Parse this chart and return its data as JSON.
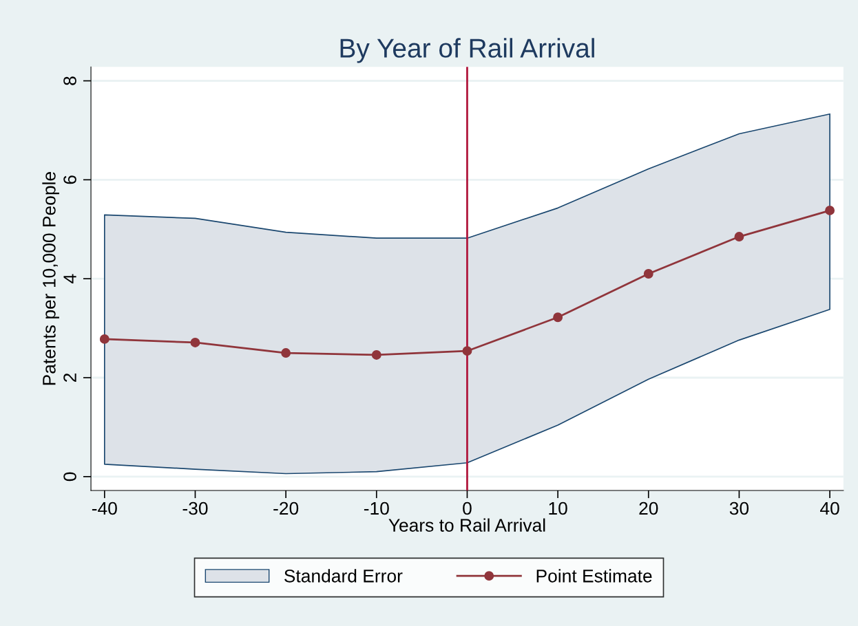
{
  "chart_data": {
    "type": "line",
    "title": "By Year of Rail Arrival",
    "xlabel": "Years to Rail Arrival",
    "ylabel": "Patents per 10,000 People",
    "x": [
      -40,
      -30,
      -20,
      -10,
      0,
      10,
      20,
      30,
      40
    ],
    "series": [
      {
        "name": "Point Estimate",
        "marker": "circle",
        "color": "#90353b",
        "values": [
          2.78,
          2.71,
          2.5,
          2.46,
          2.54,
          3.22,
          4.1,
          4.85,
          5.38
        ],
        "lower": [
          0.25,
          0.15,
          0.06,
          0.1,
          0.28,
          1.04,
          1.97,
          2.76,
          3.38
        ],
        "upper": [
          5.29,
          5.22,
          4.94,
          4.82,
          4.82,
          5.43,
          6.22,
          6.93,
          7.33
        ]
      }
    ],
    "annotations": [
      "Standard Error"
    ],
    "xlim": [
      -41.5,
      41.5
    ],
    "ylim": [
      -0.28,
      8.28
    ],
    "xticks": [
      -40,
      -30,
      -20,
      -10,
      0,
      10,
      20,
      30,
      40
    ],
    "yticks": [
      0,
      2,
      4,
      6,
      8
    ],
    "ref_lines": [
      {
        "axis": "x",
        "value": 0,
        "color": "#b0163c"
      }
    ],
    "grid": "y",
    "legend": "bottom",
    "line_style": "solid"
  }
}
